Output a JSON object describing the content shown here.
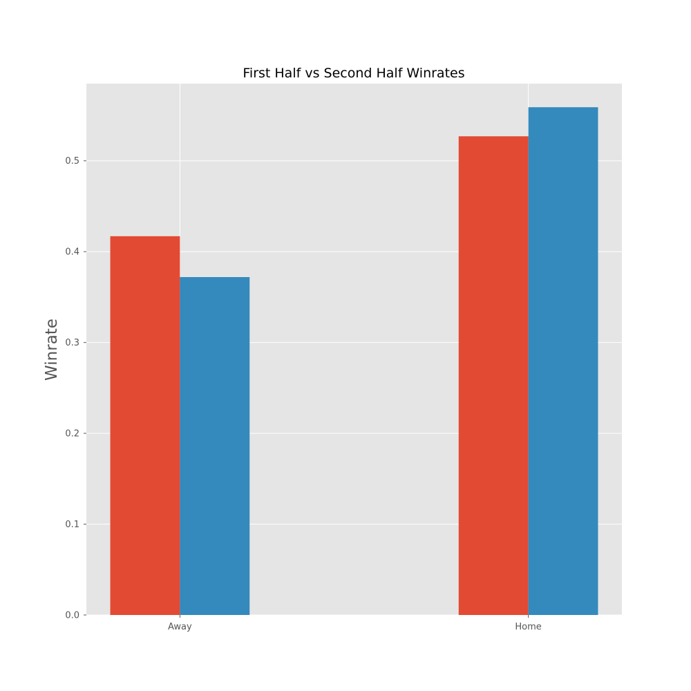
{
  "chart_data": {
    "type": "bar",
    "title": "First Half vs Second Half Winrates",
    "xlabel": "",
    "ylabel": "Winrate",
    "categories": [
      "Away",
      "Home"
    ],
    "series": [
      {
        "values": [
          0.417,
          0.527
        ],
        "color": "#E24A33"
      },
      {
        "values": [
          0.372,
          0.559
        ],
        "color": "#348ABD"
      }
    ],
    "ylim": [
      0,
      0.585
    ],
    "yticks": [
      "0.0",
      "0.1",
      "0.2",
      "0.3",
      "0.4",
      "0.5"
    ],
    "ytick_values": [
      0,
      0.1,
      0.2,
      0.3,
      0.4,
      0.5
    ],
    "grid": true,
    "legend": "none",
    "style": {
      "plot_background": "#E5E5E5",
      "grid_color": "#FFFFFF"
    }
  }
}
